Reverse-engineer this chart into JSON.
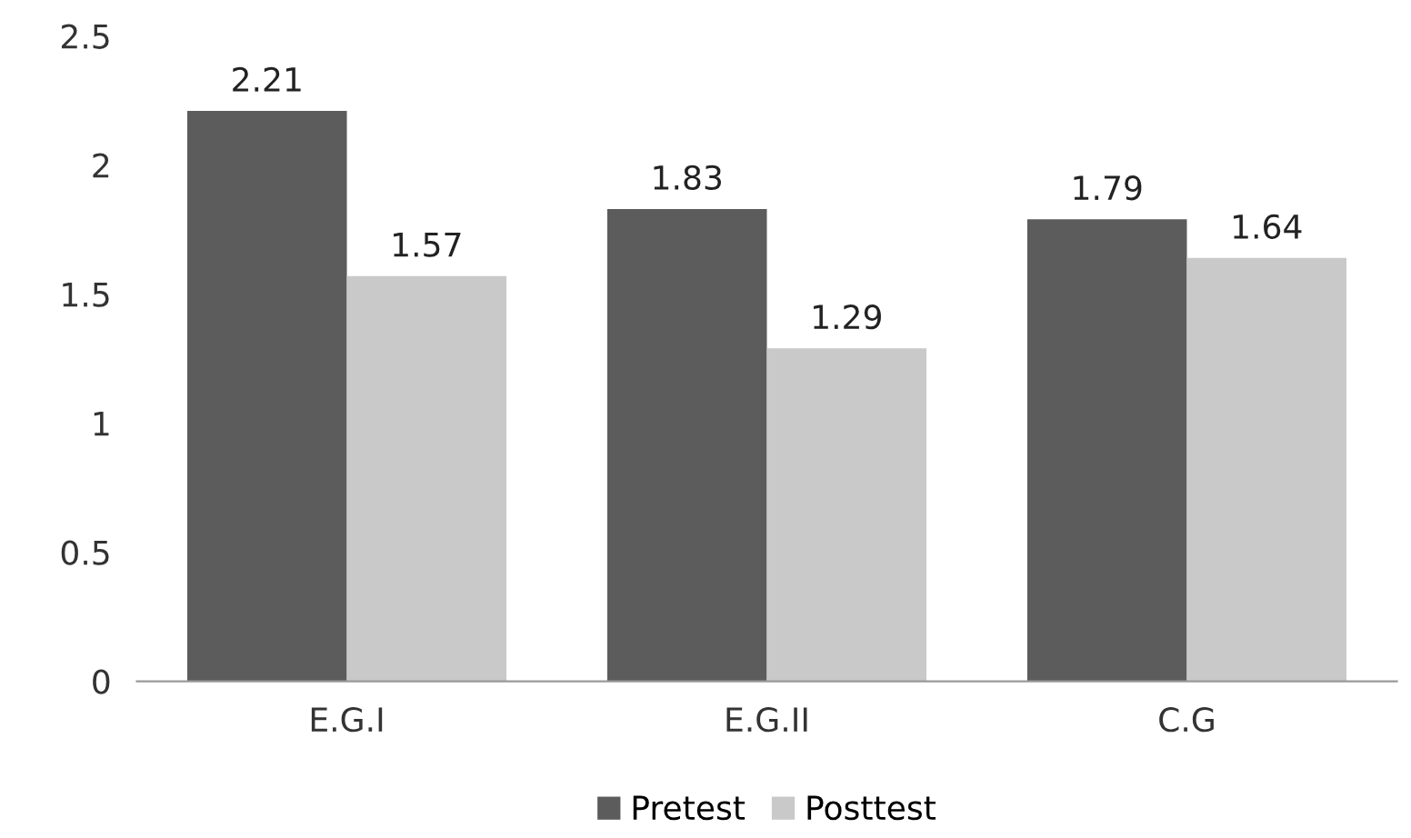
{
  "chart_data": {
    "type": "bar",
    "categories": [
      "E.G.I",
      "E.G.II",
      "C.G"
    ],
    "series": [
      {
        "name": "Pretest",
        "color": "#5c5c5c",
        "values": [
          2.21,
          1.83,
          1.79
        ]
      },
      {
        "name": "Posttest",
        "color": "#c9c9c9",
        "values": [
          1.57,
          1.29,
          1.64
        ]
      }
    ],
    "ylim": [
      0,
      2.5
    ],
    "yticks": [
      0,
      0.5,
      1,
      1.5,
      2,
      2.5
    ],
    "grid": false,
    "legend": "bottom",
    "data_labels": true
  }
}
